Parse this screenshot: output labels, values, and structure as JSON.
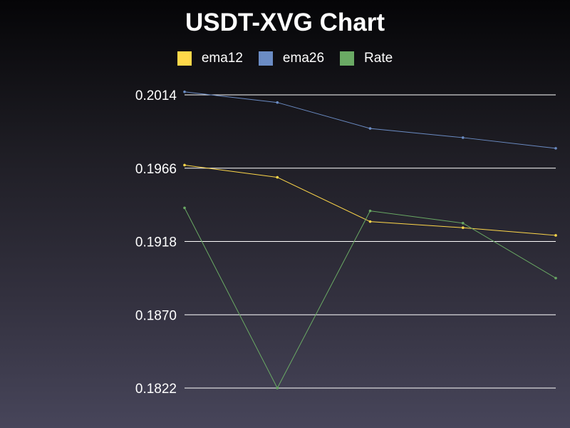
{
  "chart_data": {
    "type": "line",
    "title": "USDT-XVG Chart",
    "xlabel": "",
    "ylabel": "",
    "x": [
      1,
      2,
      3,
      4,
      5
    ],
    "y_ticks": [
      "0.2014",
      "0.1966",
      "0.1918",
      "0.1870",
      "0.1822"
    ],
    "ylim": [
      0.1822,
      0.2014
    ],
    "grid": true,
    "legend_position": "top-center",
    "series": [
      {
        "name": "ema12",
        "color": "#ffd84a",
        "values": [
          0.1968,
          0.196,
          0.1931,
          0.1927,
          0.1922
        ]
      },
      {
        "name": "ema26",
        "color": "#6b8cc4",
        "values": [
          0.2016,
          0.2009,
          0.1992,
          0.1986,
          0.1979
        ]
      },
      {
        "name": "Rate",
        "color": "#6aaa64",
        "values": [
          0.194,
          0.1822,
          0.1938,
          0.193,
          0.1894
        ]
      }
    ]
  }
}
